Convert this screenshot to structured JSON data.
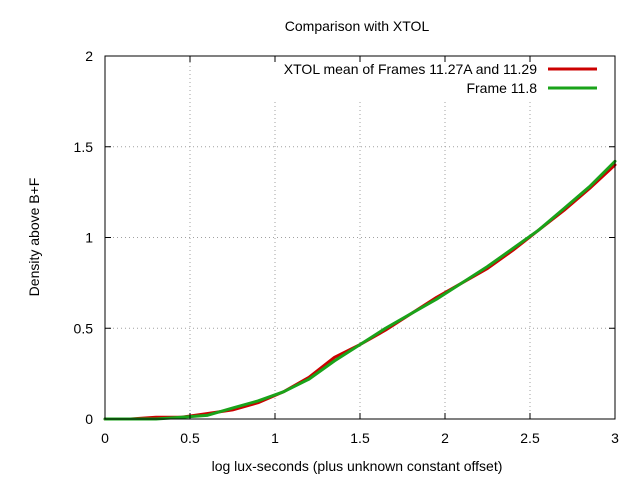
{
  "chart_data": {
    "type": "line",
    "title": "Comparison with XTOL",
    "xlabel": "log lux-seconds (plus unknown constant offset)",
    "ylabel": "Density above B+F",
    "xlim": [
      0,
      3
    ],
    "ylim": [
      0,
      2
    ],
    "xticks": [
      0,
      0.5,
      1,
      1.5,
      2,
      2.5,
      3
    ],
    "xtick_labels": [
      "0",
      "0.5",
      "1",
      "1.5",
      "2",
      "2.5",
      "3"
    ],
    "yticks": [
      0,
      0.5,
      1,
      1.5,
      2
    ],
    "ytick_labels": [
      "0",
      "0.5",
      "1",
      "1.5",
      "2"
    ],
    "grid": true,
    "legend_position": "top-right",
    "series": [
      {
        "name": "XTOL mean of Frames 11.27A and 11.29",
        "color": "#cc0000",
        "x": [
          0,
          0.15,
          0.3,
          0.45,
          0.6,
          0.75,
          0.9,
          1.05,
          1.2,
          1.35,
          1.5,
          1.65,
          1.8,
          1.95,
          2.1,
          2.25,
          2.4,
          2.55,
          2.7,
          2.85,
          3.0
        ],
        "y": [
          0,
          0.0,
          0.01,
          0.01,
          0.03,
          0.05,
          0.09,
          0.15,
          0.23,
          0.34,
          0.41,
          0.49,
          0.58,
          0.67,
          0.75,
          0.83,
          0.93,
          1.04,
          1.15,
          1.27,
          1.4
        ]
      },
      {
        "name": "Frame 11.8",
        "color": "#1aa31a",
        "x": [
          0,
          0.15,
          0.3,
          0.45,
          0.6,
          0.75,
          0.9,
          1.05,
          1.2,
          1.35,
          1.5,
          1.65,
          1.8,
          1.95,
          2.1,
          2.25,
          2.4,
          2.55,
          2.7,
          2.85,
          3.0
        ],
        "y": [
          0,
          0.0,
          0.0,
          0.01,
          0.02,
          0.06,
          0.1,
          0.15,
          0.22,
          0.32,
          0.41,
          0.5,
          0.58,
          0.66,
          0.75,
          0.84,
          0.94,
          1.04,
          1.16,
          1.28,
          1.42
        ]
      }
    ]
  }
}
